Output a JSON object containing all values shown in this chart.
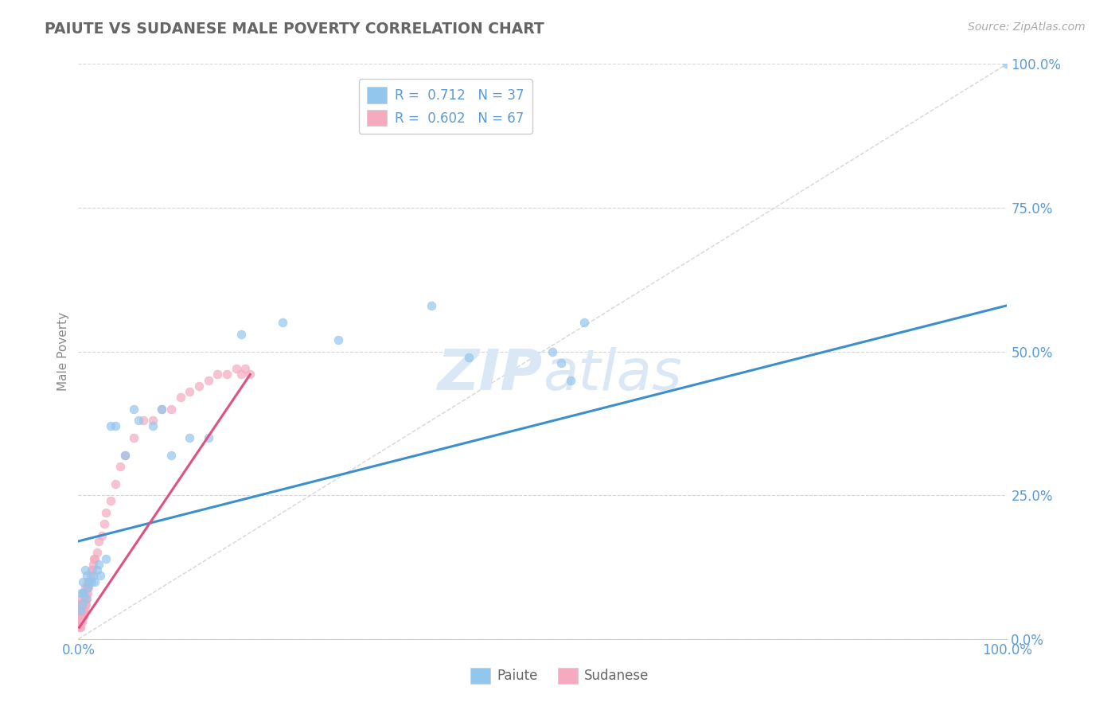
{
  "title": "PAIUTE VS SUDANESE MALE POVERTY CORRELATION CHART",
  "source_text": "Source: ZipAtlas.com",
  "ylabel": "Male Poverty",
  "xlim": [
    0,
    1
  ],
  "ylim": [
    0,
    1
  ],
  "x_tick_positions": [
    0.0,
    1.0
  ],
  "x_tick_labels": [
    "0.0%",
    "100.0%"
  ],
  "y_tick_positions": [
    0.0,
    0.25,
    0.5,
    0.75,
    1.0
  ],
  "y_tick_labels": [
    "0.0%",
    "25.0%",
    "50.0%",
    "75.0%",
    "100.0%"
  ],
  "paiute_color": "#93C6ED",
  "sudanese_color": "#F5AABF",
  "paiute_line_color": "#3B8FCC",
  "sudanese_line_color": "#E05080",
  "paiute_R": 0.712,
  "paiute_N": 37,
  "sudanese_R": 0.602,
  "sudanese_N": 67,
  "legend_color": "#5B9BD5",
  "watermark_color": "#DAE8F5",
  "background_color": "#FFFFFF",
  "grid_color": "#CCCCCC",
  "diagonal_color": "#CCCCCC",
  "title_color": "#666666",
  "tick_color": "#5B9BD5",
  "paiute_x": [
    0.002,
    0.003,
    0.004,
    0.005,
    0.006,
    0.007,
    0.008,
    0.009,
    0.01,
    0.012,
    0.014,
    0.016,
    0.018,
    0.02,
    0.022,
    0.024,
    0.03,
    0.035,
    0.04,
    0.05,
    0.06,
    0.065,
    0.08,
    0.09,
    0.1,
    0.12,
    0.14,
    0.175,
    0.22,
    0.28,
    0.38,
    0.42,
    0.51,
    0.52,
    0.53,
    0.545,
    1.0
  ],
  "paiute_y": [
    0.05,
    0.08,
    0.06,
    0.1,
    0.08,
    0.12,
    0.07,
    0.11,
    0.09,
    0.1,
    0.1,
    0.11,
    0.1,
    0.12,
    0.13,
    0.11,
    0.14,
    0.37,
    0.37,
    0.32,
    0.4,
    0.38,
    0.37,
    0.4,
    0.32,
    0.35,
    0.35,
    0.53,
    0.55,
    0.52,
    0.58,
    0.49,
    0.5,
    0.48,
    0.45,
    0.55,
    1.0
  ],
  "sudanese_x": [
    0.001,
    0.001,
    0.001,
    0.001,
    0.002,
    0.002,
    0.002,
    0.002,
    0.002,
    0.003,
    0.003,
    0.003,
    0.003,
    0.003,
    0.004,
    0.004,
    0.004,
    0.004,
    0.005,
    0.005,
    0.005,
    0.005,
    0.006,
    0.006,
    0.006,
    0.006,
    0.007,
    0.007,
    0.007,
    0.008,
    0.008,
    0.009,
    0.009,
    0.01,
    0.01,
    0.011,
    0.012,
    0.013,
    0.014,
    0.015,
    0.016,
    0.017,
    0.018,
    0.02,
    0.022,
    0.025,
    0.028,
    0.03,
    0.035,
    0.04,
    0.045,
    0.05,
    0.06,
    0.07,
    0.08,
    0.09,
    0.1,
    0.11,
    0.12,
    0.13,
    0.14,
    0.15,
    0.16,
    0.17,
    0.175,
    0.18,
    0.185
  ],
  "sudanese_y": [
    0.02,
    0.03,
    0.04,
    0.05,
    0.02,
    0.03,
    0.04,
    0.05,
    0.06,
    0.03,
    0.04,
    0.05,
    0.06,
    0.07,
    0.03,
    0.04,
    0.05,
    0.06,
    0.04,
    0.05,
    0.06,
    0.08,
    0.04,
    0.05,
    0.07,
    0.08,
    0.05,
    0.06,
    0.09,
    0.06,
    0.08,
    0.07,
    0.09,
    0.08,
    0.1,
    0.09,
    0.1,
    0.11,
    0.12,
    0.12,
    0.13,
    0.14,
    0.14,
    0.15,
    0.17,
    0.18,
    0.2,
    0.22,
    0.24,
    0.27,
    0.3,
    0.32,
    0.35,
    0.38,
    0.38,
    0.4,
    0.4,
    0.42,
    0.43,
    0.44,
    0.45,
    0.46,
    0.46,
    0.47,
    0.46,
    0.47,
    0.46
  ],
  "paiute_line_x0": 0.0,
  "paiute_line_y0": 0.17,
  "paiute_line_x1": 1.0,
  "paiute_line_y1": 0.58,
  "sudanese_line_x0": 0.001,
  "sudanese_line_y0": 0.02,
  "sudanese_line_x1": 0.185,
  "sudanese_line_y1": 0.46
}
